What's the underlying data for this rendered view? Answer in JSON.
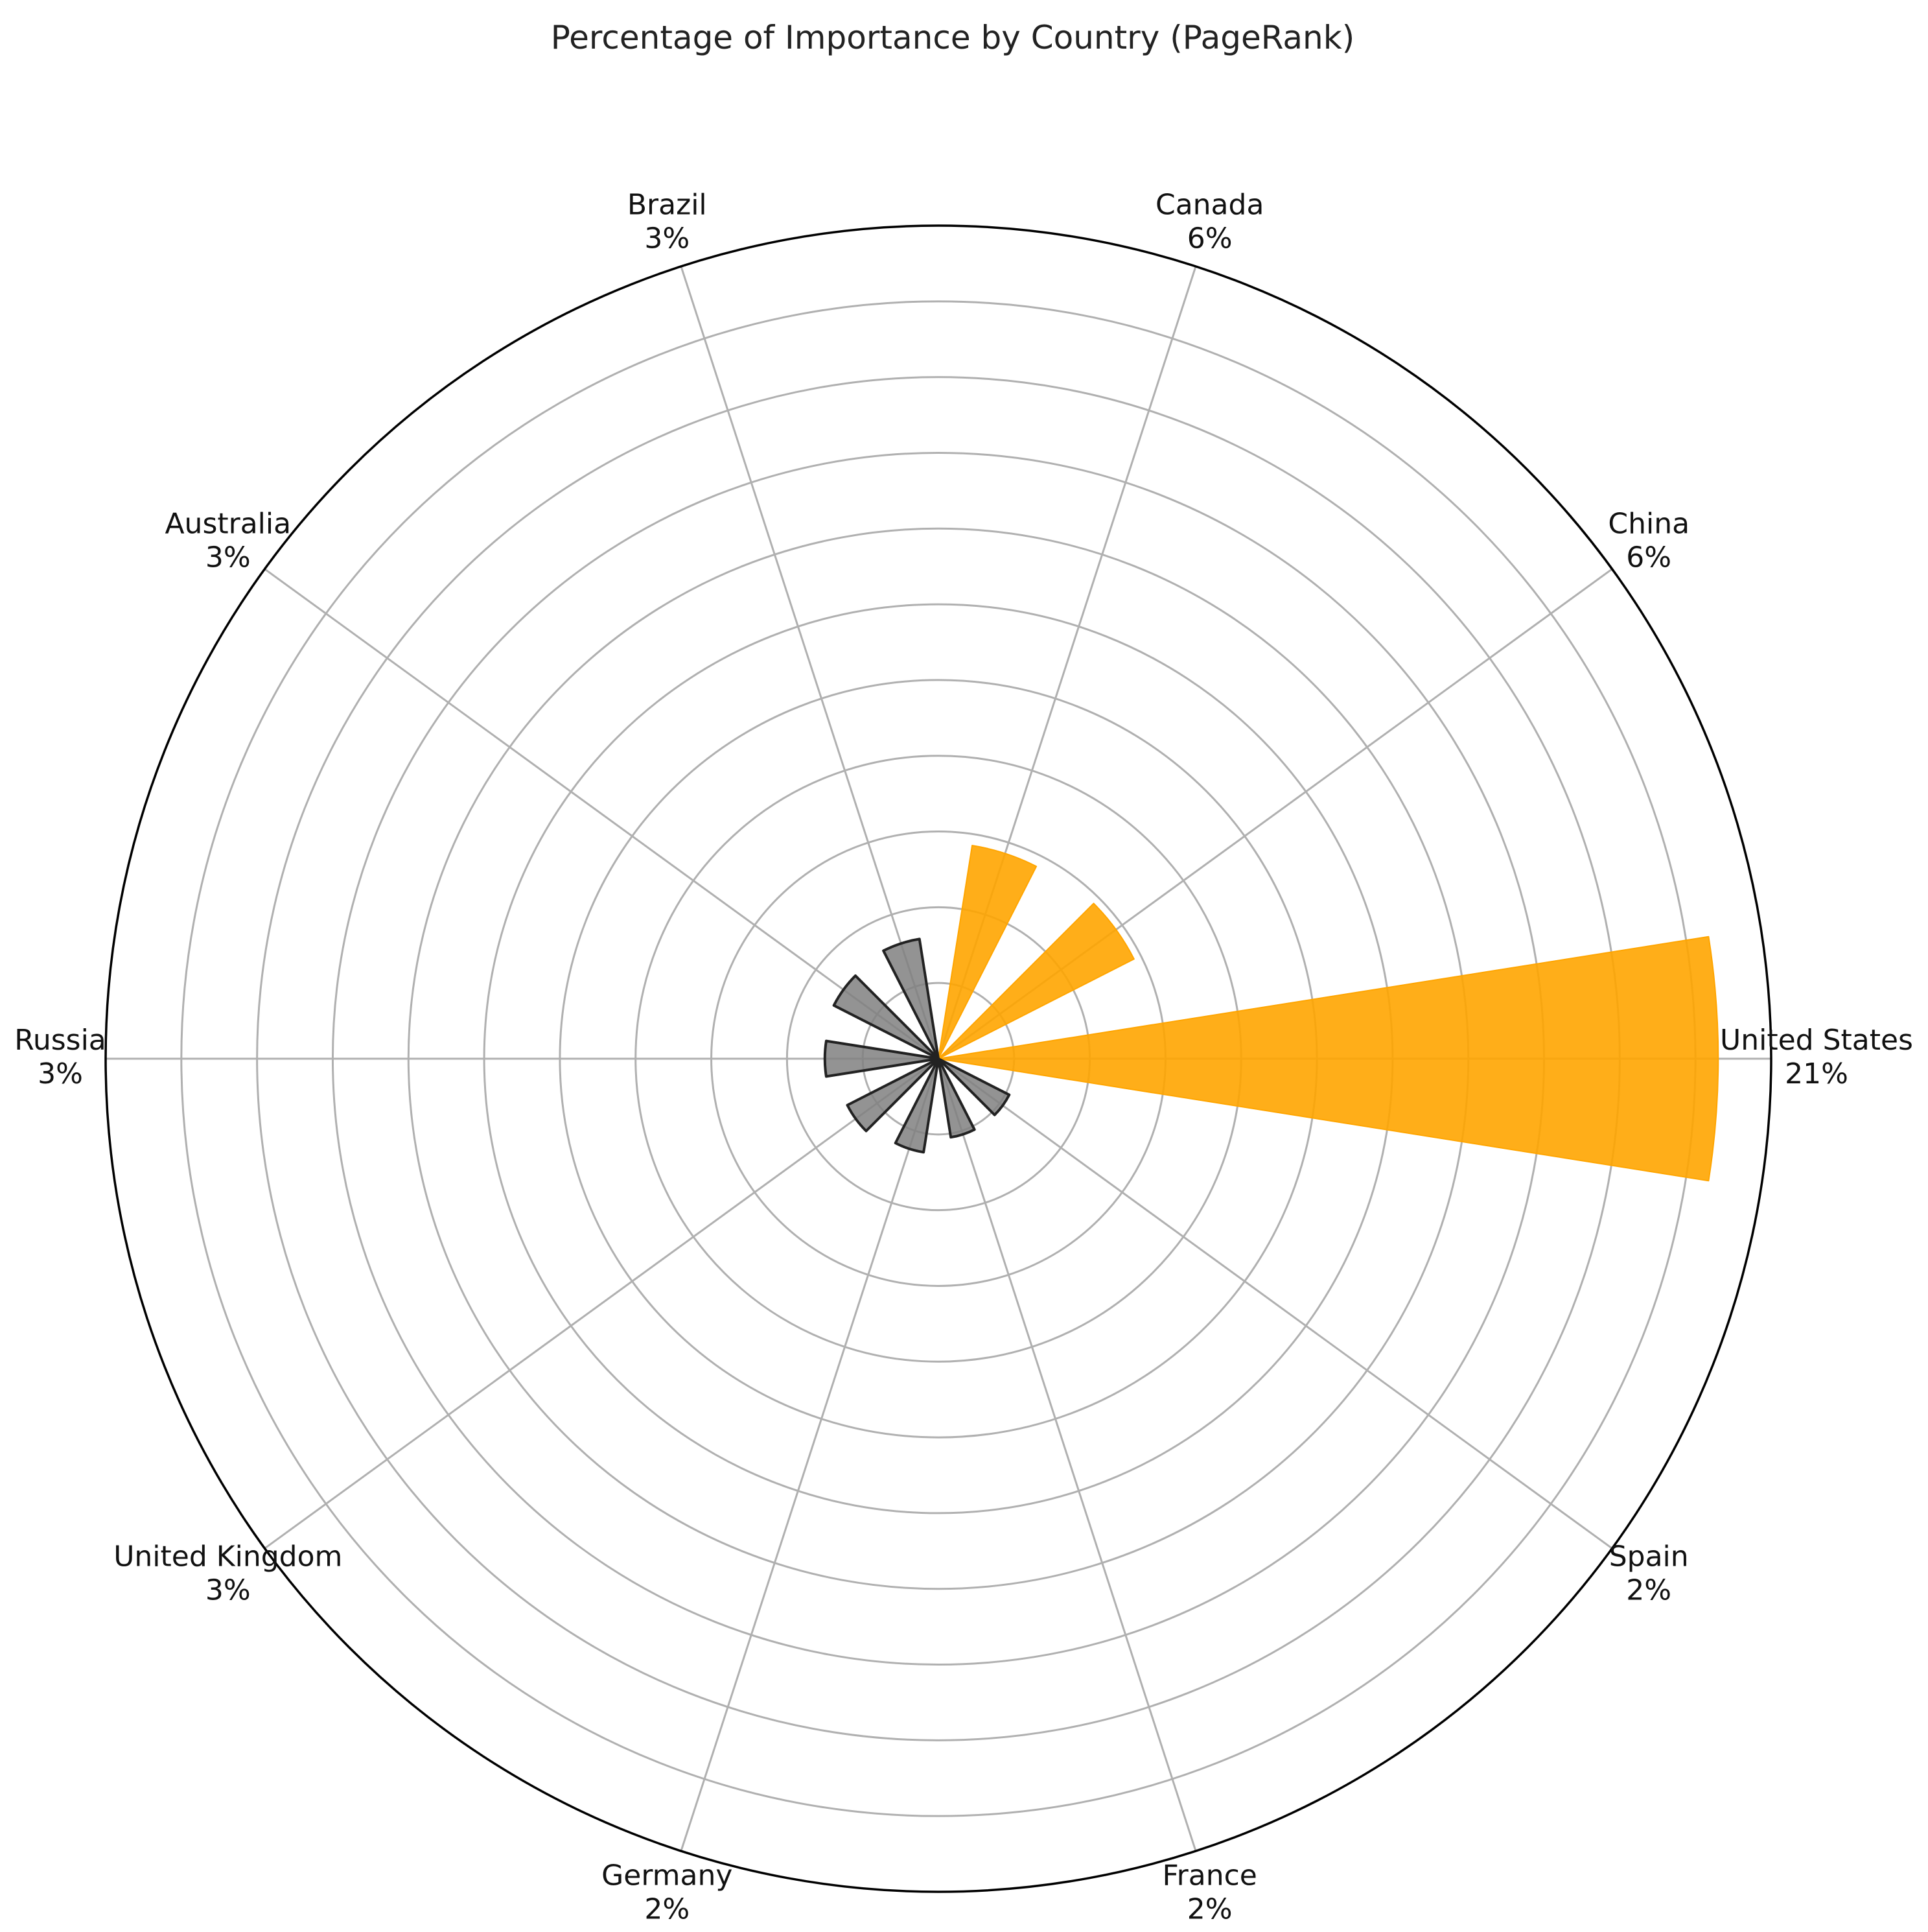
{
  "chart_data": {
    "type": "bar",
    "polar": true,
    "title": "Percentage of Importance by Country (PageRank)",
    "categories": [
      "United States",
      "China",
      "Canada",
      "Brazil",
      "Australia",
      "Russia",
      "United Kingdom",
      "Germany",
      "France",
      "Spain"
    ],
    "values": [
      20.6,
      5.8,
      5.7,
      3.2,
      3.1,
      3.0,
      2.7,
      2.5,
      2.1,
      2.1
    ],
    "value_labels": [
      "21%",
      "6%",
      "6%",
      "3%",
      "3%",
      "3%",
      "3%",
      "2%",
      "2%",
      "2%"
    ],
    "highlight": [
      true,
      true,
      true,
      false,
      false,
      false,
      false,
      false,
      false,
      false
    ],
    "rlim": [
      0,
      22
    ],
    "grid": true,
    "colors": {
      "highlight": "#ffa500",
      "normal": "#808080",
      "normal_edge": "#222222",
      "grid": "#b0b0b0"
    }
  }
}
